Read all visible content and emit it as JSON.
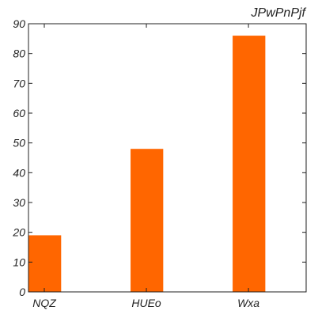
{
  "chart_data": {
    "type": "bar",
    "title": "JPwPnPjf",
    "xlabel": "",
    "ylabel": "",
    "categories": [
      "NQZ",
      "HUEo",
      "Wxa"
    ],
    "values": [
      19,
      48,
      86
    ],
    "ylim": [
      0,
      90
    ],
    "yticks": [
      0,
      10,
      20,
      30,
      40,
      50,
      60,
      70,
      80,
      90
    ],
    "grid": false,
    "bar_color": "#ff6600",
    "axis_color": "#222222"
  }
}
